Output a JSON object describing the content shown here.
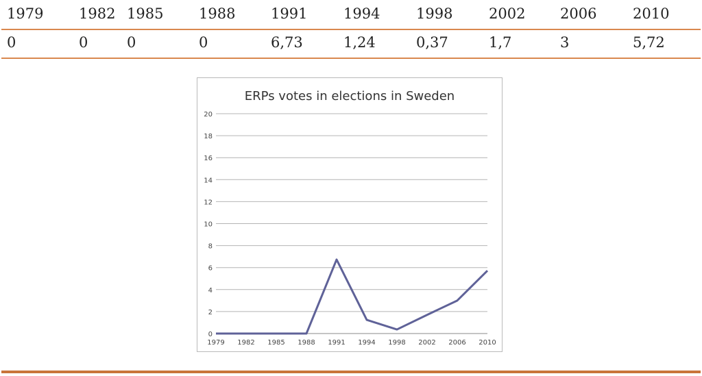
{
  "table": {
    "years": [
      "1979",
      "1982",
      "1985",
      "1988",
      "1991",
      "1994",
      "1998",
      "2002",
      "2006",
      "2010"
    ],
    "values": [
      "0",
      "0",
      "0",
      "0",
      "6,73",
      "1,24",
      "0,37",
      "1,7",
      "3",
      "5,72"
    ]
  },
  "chart_data": {
    "type": "line",
    "title": "ERPs votes in elections in Sweden",
    "categories": [
      "1979",
      "1982",
      "1985",
      "1988",
      "1991",
      "1994",
      "1998",
      "2002",
      "2006",
      "2010"
    ],
    "series": [
      {
        "name": "ERP",
        "values": [
          0,
          0,
          0,
          0,
          6.73,
          1.24,
          0.37,
          1.7,
          3,
          5.72
        ]
      }
    ],
    "xlabel": "",
    "ylabel": "",
    "ylim": [
      0,
      20
    ],
    "yticks": [
      0,
      2,
      4,
      6,
      8,
      10,
      12,
      14,
      16,
      18,
      20
    ],
    "grid": true,
    "line_color": "#5f6298",
    "grid_color": "#b4b4b4"
  },
  "colors": {
    "table_rule": "#d9884e",
    "bottom_rule": "#c9753a"
  }
}
